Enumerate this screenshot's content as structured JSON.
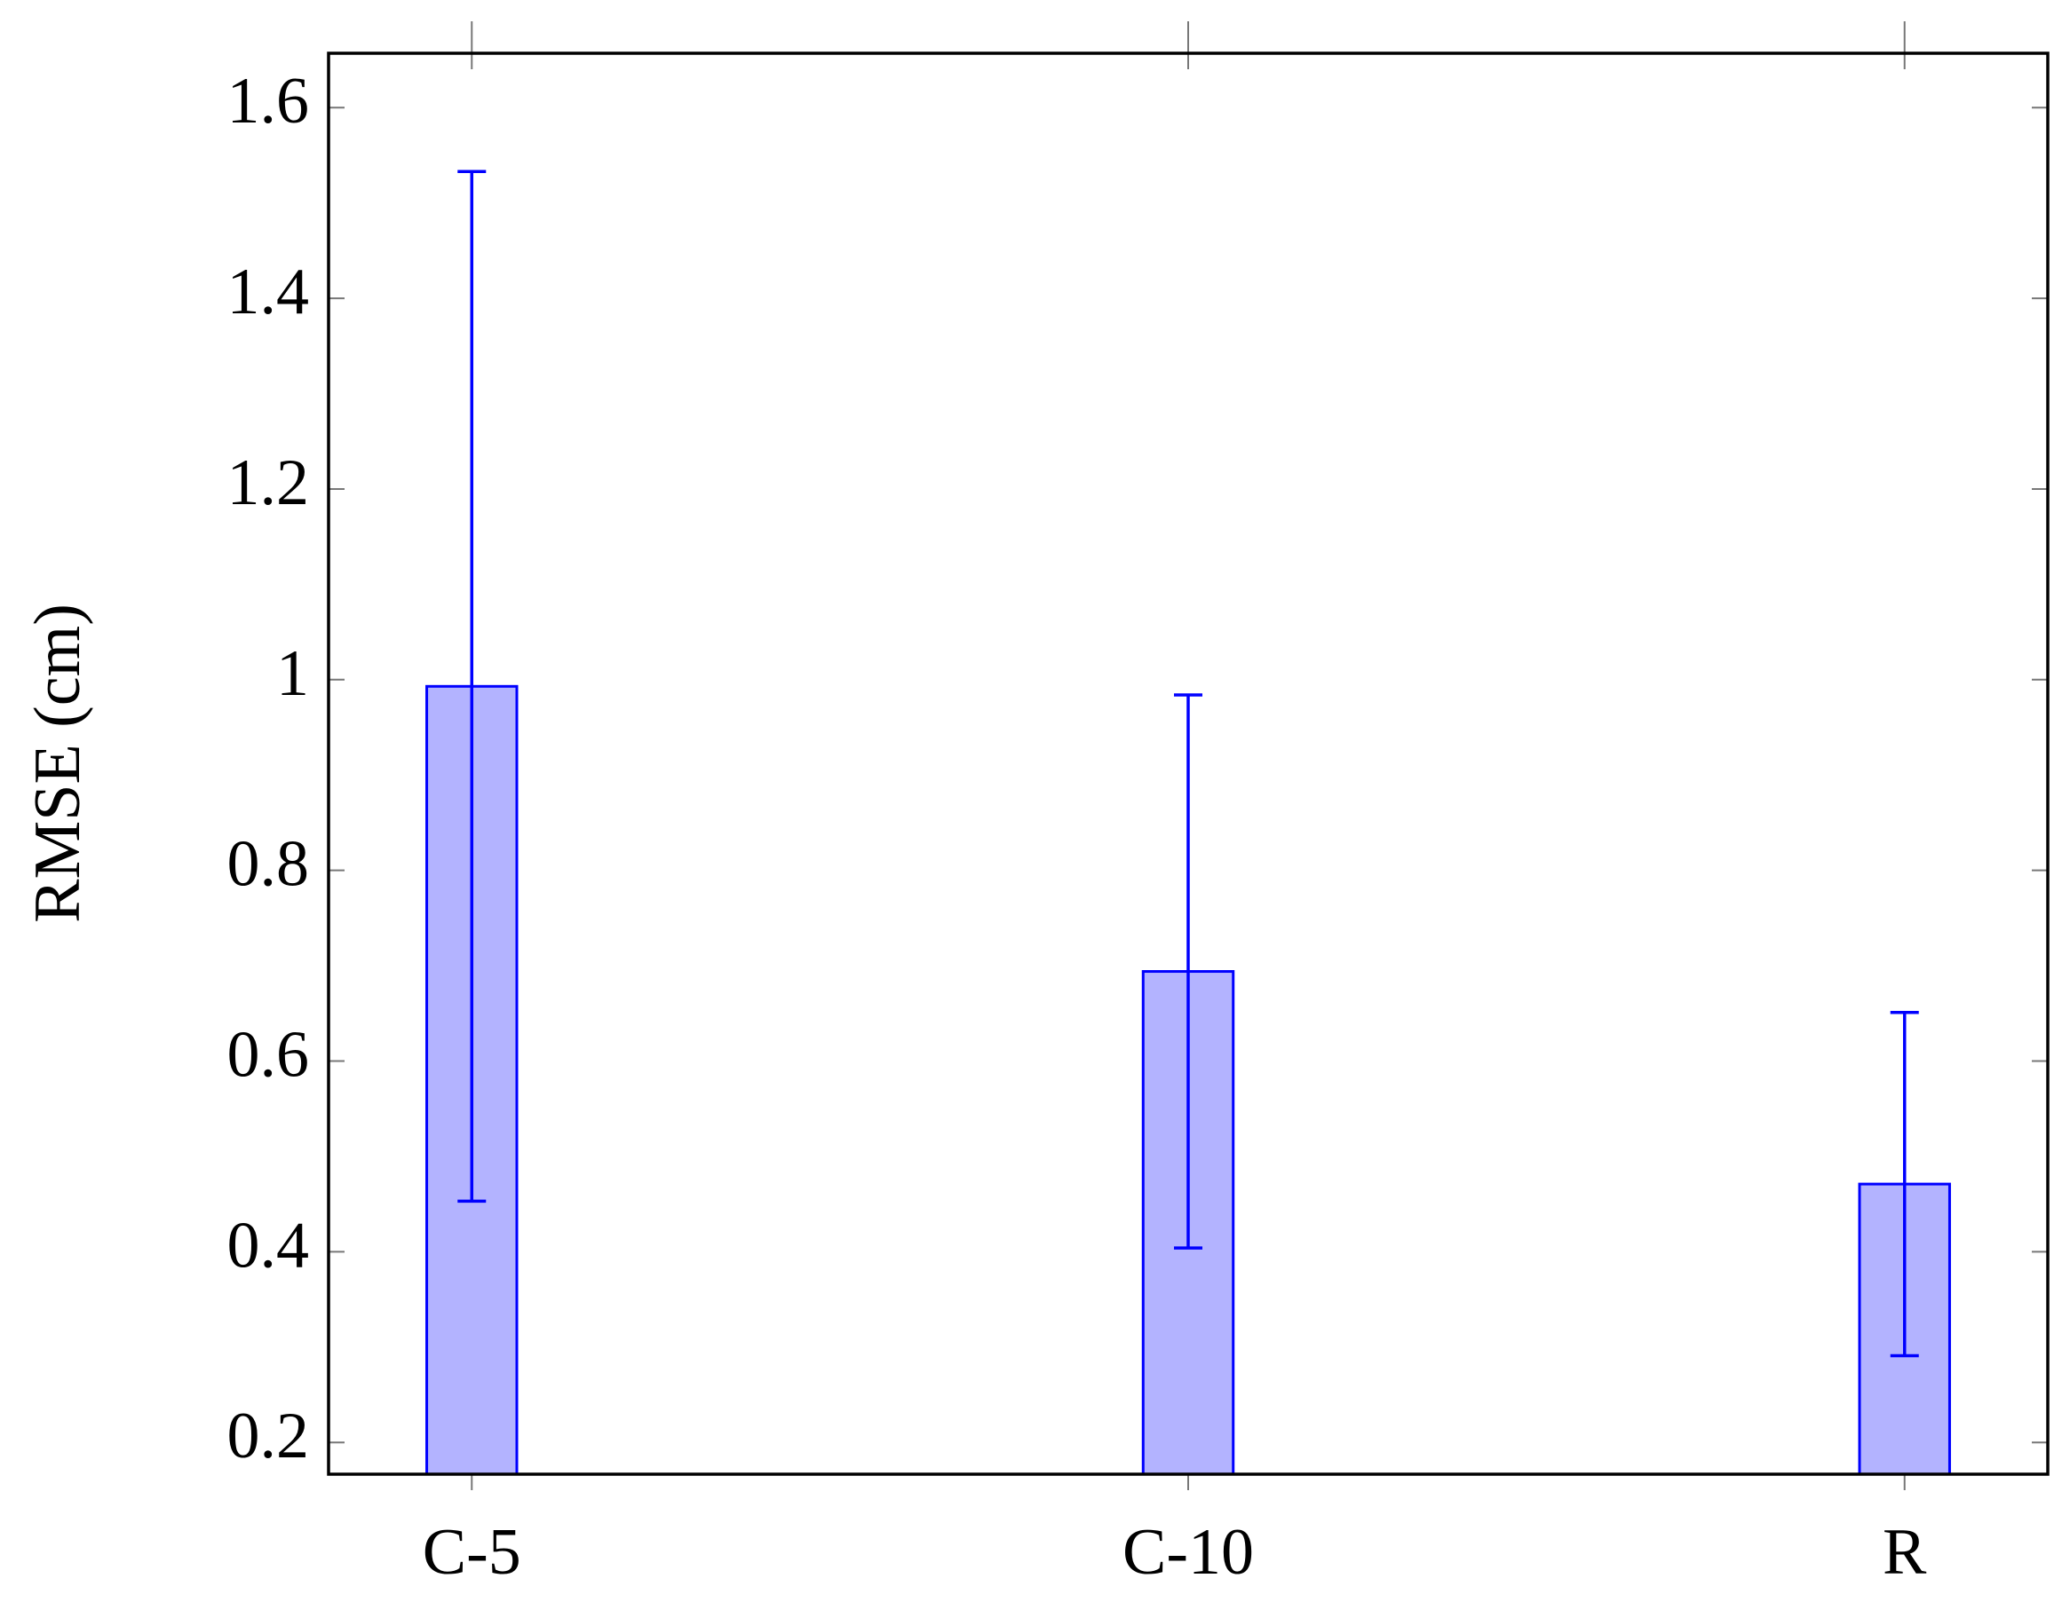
{
  "chart_data": {
    "type": "bar",
    "y_label": "RMSE (cm)",
    "categories": [
      "C-5",
      "C-10",
      "R"
    ],
    "values": [
      0.993,
      0.694,
      0.471
    ],
    "errors": [
      0.54,
      0.29,
      0.18
    ],
    "color": "#b3b3ff",
    "edge_color": "#0000ff",
    "ylim": [
      0.1667,
      1.657
    ],
    "yticks": [
      0.2,
      0.4,
      0.6,
      0.8,
      1,
      1.2,
      1.4,
      1.6
    ],
    "grid": false
  }
}
